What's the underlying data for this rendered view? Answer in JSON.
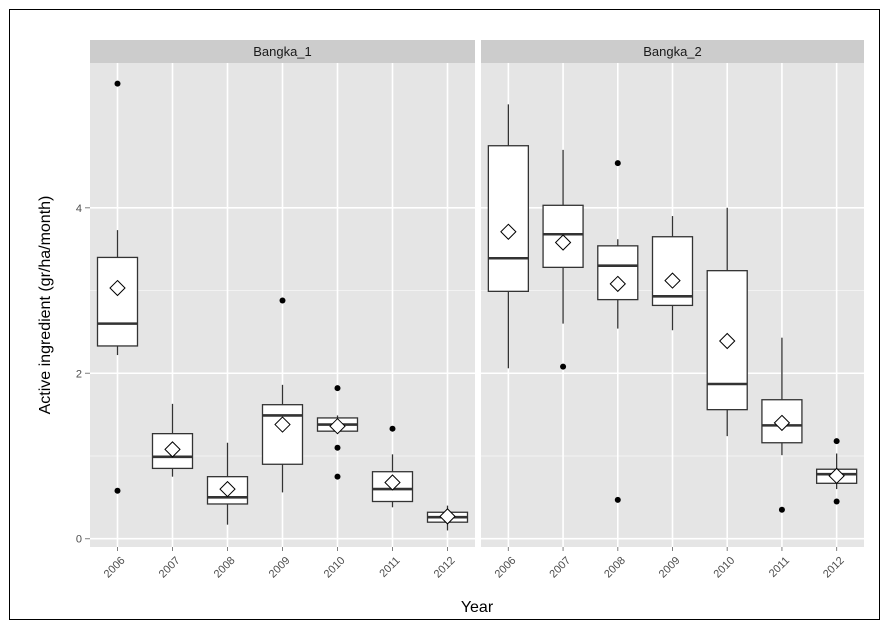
{
  "chart_data": {
    "type": "boxplot",
    "xlabel": "Year",
    "ylabel": "Active ingredient (gr/ha/month)",
    "ylim": [
      -0.1,
      5.75
    ],
    "y_ticks": [
      0,
      2,
      4
    ],
    "categories": [
      "2006",
      "2007",
      "2008",
      "2009",
      "2010",
      "2011",
      "2012"
    ],
    "grid": true,
    "mean_marker": "diamond",
    "panels": [
      {
        "name": "Bangka_1",
        "boxes": [
          {
            "year": "2006",
            "whisker_low": 2.22,
            "q1": 2.33,
            "median": 2.6,
            "q3": 3.4,
            "whisker_high": 3.73,
            "mean": 3.03,
            "outliers": [
              5.5,
              0.58
            ]
          },
          {
            "year": "2007",
            "whisker_low": 0.75,
            "q1": 0.85,
            "median": 0.99,
            "q3": 1.27,
            "whisker_high": 1.63,
            "mean": 1.08,
            "outliers": []
          },
          {
            "year": "2008",
            "whisker_low": 0.17,
            "q1": 0.42,
            "median": 0.5,
            "q3": 0.75,
            "whisker_high": 1.16,
            "mean": 0.6,
            "outliers": []
          },
          {
            "year": "2009",
            "whisker_low": 0.56,
            "q1": 0.9,
            "median": 1.49,
            "q3": 1.62,
            "whisker_high": 1.86,
            "mean": 1.38,
            "outliers": [
              2.88
            ]
          },
          {
            "year": "2010",
            "whisker_low": 1.28,
            "q1": 1.3,
            "median": 1.38,
            "q3": 1.46,
            "whisker_high": 1.49,
            "mean": 1.36,
            "outliers": [
              1.82,
              1.1,
              0.75
            ]
          },
          {
            "year": "2011",
            "whisker_low": 0.38,
            "q1": 0.45,
            "median": 0.6,
            "q3": 0.81,
            "whisker_high": 1.02,
            "mean": 0.68,
            "outliers": [
              1.33
            ]
          },
          {
            "year": "2012",
            "whisker_low": 0.1,
            "q1": 0.2,
            "median": 0.26,
            "q3": 0.32,
            "whisker_high": 0.4,
            "mean": 0.27,
            "outliers": []
          }
        ]
      },
      {
        "name": "Bangka_2",
        "boxes": [
          {
            "year": "2006",
            "whisker_low": 2.06,
            "q1": 2.99,
            "median": 3.39,
            "q3": 4.75,
            "whisker_high": 5.25,
            "mean": 3.71,
            "outliers": []
          },
          {
            "year": "2007",
            "whisker_low": 2.6,
            "q1": 3.28,
            "median": 3.68,
            "q3": 4.03,
            "whisker_high": 4.7,
            "mean": 3.58,
            "outliers": [
              2.08
            ]
          },
          {
            "year": "2008",
            "whisker_low": 2.54,
            "q1": 2.89,
            "median": 3.3,
            "q3": 3.54,
            "whisker_high": 3.62,
            "mean": 3.08,
            "outliers": [
              4.54,
              0.47
            ]
          },
          {
            "year": "2009",
            "whisker_low": 2.52,
            "q1": 2.82,
            "median": 2.93,
            "q3": 3.65,
            "whisker_high": 3.9,
            "mean": 3.12,
            "outliers": []
          },
          {
            "year": "2010",
            "whisker_low": 1.24,
            "q1": 1.56,
            "median": 1.87,
            "q3": 3.24,
            "whisker_high": 4.0,
            "mean": 2.39,
            "outliers": []
          },
          {
            "year": "2011",
            "whisker_low": 1.01,
            "q1": 1.16,
            "median": 1.37,
            "q3": 1.68,
            "whisker_high": 2.43,
            "mean": 1.4,
            "outliers": [
              0.35
            ]
          },
          {
            "year": "2012",
            "whisker_low": 0.6,
            "q1": 0.67,
            "median": 0.78,
            "q3": 0.84,
            "whisker_high": 1.03,
            "mean": 0.76,
            "outliers": [
              1.18,
              0.45
            ]
          }
        ]
      }
    ]
  },
  "colors": {
    "panel_bg": "#e5e5e5",
    "strip_bg": "#cccccc",
    "grid_major": "#ffffff",
    "grid_minor": "#f2f2f2",
    "box_fill": "#ffffff",
    "box_line": "#333333",
    "point": "#000000",
    "tick_text": "#4d4d4d"
  }
}
